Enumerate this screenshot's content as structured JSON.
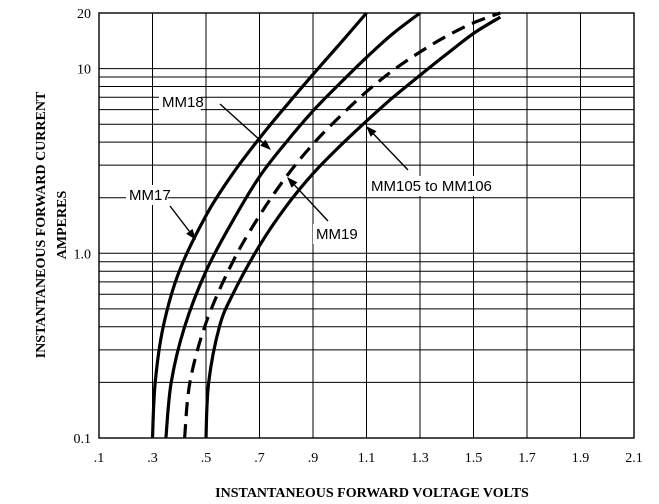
{
  "chart_data": {
    "type": "line",
    "xlabel": "INSTANTANEOUS FORWARD VOLTAGE VOLTS",
    "ylabel": [
      "INSTANTANEOUS FORWARD CURRENT",
      "AMPERES"
    ],
    "xlim": [
      0.1,
      2.1
    ],
    "ylim": [
      0.1,
      20
    ],
    "y_scale": "log",
    "grid": true,
    "x_ticks": [
      {
        "value": 0.1,
        "label": ".1"
      },
      {
        "value": 0.3,
        "label": ".3"
      },
      {
        "value": 0.5,
        "label": ".5"
      },
      {
        "value": 0.7,
        "label": ".7"
      },
      {
        "value": 0.9,
        "label": ".9"
      },
      {
        "value": 1.1,
        "label": "1.1"
      },
      {
        "value": 1.3,
        "label": "1.3"
      },
      {
        "value": 1.5,
        "label": "1.5"
      },
      {
        "value": 1.7,
        "label": "1.7"
      },
      {
        "value": 1.9,
        "label": "1.9"
      },
      {
        "value": 2.1,
        "label": "2.1"
      }
    ],
    "y_ticks": [
      {
        "value": 0.1,
        "label": "0.1"
      },
      {
        "value": 1.0,
        "label": "1.0"
      },
      {
        "value": 10,
        "label": "10"
      },
      {
        "value": 20,
        "label": "20"
      }
    ],
    "series": [
      {
        "name": "MM17",
        "dashed": false,
        "x": [
          0.3,
          0.31,
          0.34,
          0.4,
          0.5,
          0.6,
          0.7,
          0.8,
          0.9,
          1.0,
          1.1
        ],
        "y": [
          0.1,
          0.2,
          0.4,
          0.8,
          1.6,
          2.7,
          4.2,
          6.3,
          9.3,
          13.6,
          20
        ]
      },
      {
        "name": "MM18",
        "dashed": false,
        "x": [
          0.35,
          0.37,
          0.42,
          0.5,
          0.6,
          0.7,
          0.8,
          0.9,
          1.0,
          1.1,
          1.2,
          1.3
        ],
        "y": [
          0.1,
          0.2,
          0.4,
          0.8,
          1.5,
          2.6,
          4.0,
          5.9,
          8.3,
          11.5,
          15.5,
          20
        ]
      },
      {
        "name": "MM19",
        "dashed": true,
        "x": [
          0.42,
          0.44,
          0.5,
          0.6,
          0.7,
          0.8,
          0.9,
          1.0,
          1.1,
          1.2,
          1.3,
          1.4,
          1.5,
          1.6
        ],
        "y": [
          0.1,
          0.2,
          0.42,
          0.9,
          1.6,
          2.6,
          3.9,
          5.5,
          7.5,
          9.8,
          12.3,
          15.0,
          17.7,
          20
        ]
      },
      {
        "name": "MM105 to MM106",
        "dashed": false,
        "x": [
          0.5,
          0.51,
          0.55,
          0.6,
          0.7,
          0.8,
          0.9,
          1.0,
          1.1,
          1.2,
          1.3,
          1.4,
          1.5,
          1.6
        ],
        "y": [
          0.1,
          0.2,
          0.4,
          0.6,
          1.1,
          1.8,
          2.7,
          3.8,
          5.2,
          7.0,
          9.2,
          12.0,
          15.5,
          19.0
        ]
      }
    ],
    "annotations": [
      {
        "text": "MM18",
        "series": "MM18"
      },
      {
        "text": "MM17",
        "series": "MM17"
      },
      {
        "text": "MM105 to MM106",
        "series": "MM105 to MM106"
      },
      {
        "text": "MM19",
        "series": "MM19"
      }
    ]
  }
}
